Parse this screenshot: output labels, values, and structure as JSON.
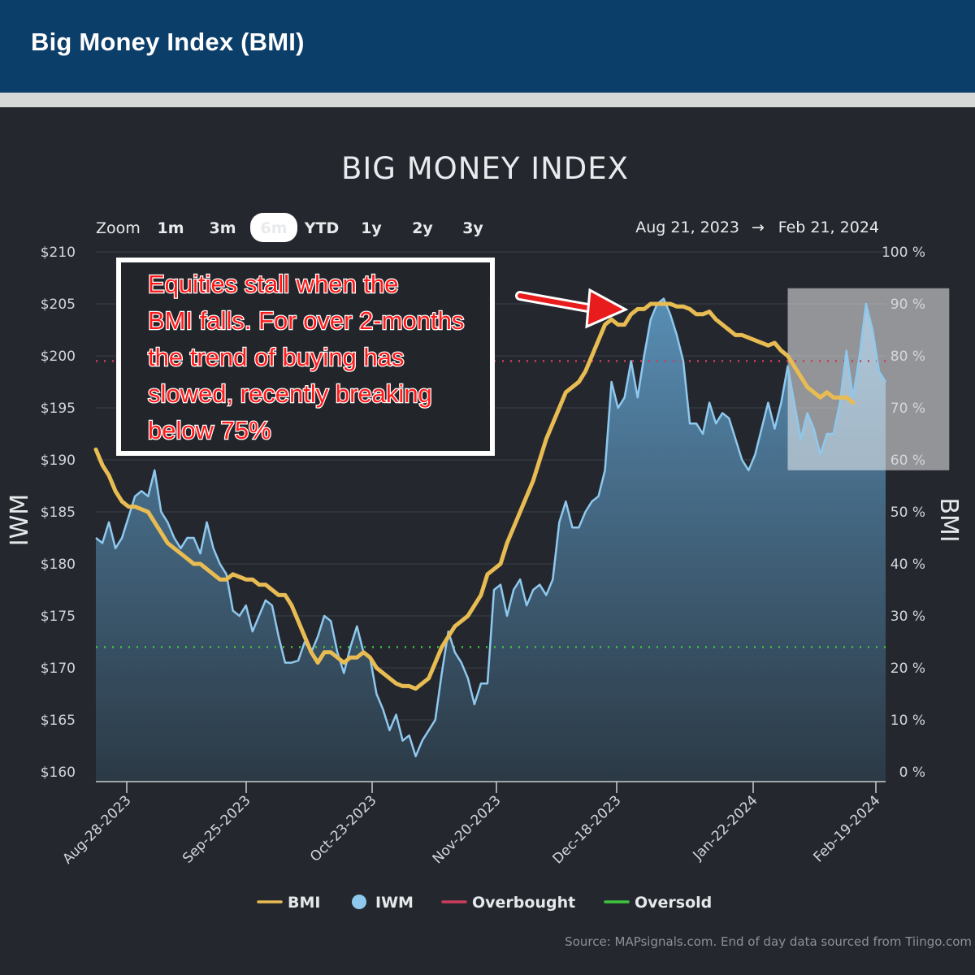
{
  "header": {
    "title": "Big Money Index (BMI)"
  },
  "chart_data": {
    "type": "line",
    "title": "BIG MONEY INDEX",
    "ylabel_left": "IWM",
    "ylabel_right": "BMI",
    "ylim_left": [
      160,
      210
    ],
    "ylim_right": [
      0,
      100
    ],
    "yticks_left": [
      "$210",
      "$205",
      "$200",
      "$195",
      "$190",
      "$185",
      "$180",
      "$175",
      "$170",
      "$165",
      "$160"
    ],
    "yticks_right": [
      "100 %",
      "90 %",
      "80 %",
      "70 %",
      "60 %",
      "50 %",
      "40 %",
      "30 %",
      "20 %",
      "10 %",
      "0 %"
    ],
    "x_ticks": [
      "Aug-28-2023",
      "Sep-25-2023",
      "Oct-23-2023",
      "Nov-20-2023",
      "Dec-18-2023",
      "Jan-22-2024",
      "Feb-19-2024"
    ],
    "zoom": {
      "label": "Zoom",
      "options": [
        "1m",
        "3m",
        "6m",
        "YTD",
        "1y",
        "2y",
        "3y"
      ],
      "selected": "6m"
    },
    "range": {
      "from": "Aug 21, 2023",
      "arrow": "→",
      "to": "Feb 21, 2024"
    },
    "overbought_level": 79,
    "oversold_level": 24,
    "shaded_region": {
      "x_start": 106,
      "x_end": 130,
      "y_bottom": 58,
      "y_top": 93
    },
    "series": [
      {
        "name": "BMI",
        "axis": "right",
        "color": "#e8bc52",
        "values": [
          62,
          59,
          57,
          54,
          52,
          51,
          51,
          50.5,
          50,
          48,
          46,
          44,
          43,
          42,
          41,
          40,
          40,
          39,
          38,
          37,
          37,
          38,
          37.5,
          37,
          37,
          36,
          36,
          35,
          34,
          34,
          32,
          29,
          26,
          23,
          21,
          23,
          23,
          22,
          21,
          22,
          22,
          23,
          22,
          20,
          19,
          18,
          17,
          16.5,
          16.5,
          16,
          17,
          18,
          21,
          24,
          26,
          28,
          29,
          30,
          32,
          34,
          38,
          39,
          40,
          44,
          47,
          50,
          53,
          56,
          60,
          64,
          67,
          70,
          73,
          74,
          75,
          77,
          80,
          83,
          86,
          87,
          86,
          86,
          88,
          89,
          89,
          90,
          90,
          90,
          90,
          89.5,
          89.5,
          89,
          88,
          88,
          88.5,
          87,
          86,
          85,
          84,
          84,
          83.5,
          83,
          82.5,
          82,
          82.5,
          81,
          80,
          78,
          76,
          74,
          73,
          72,
          73,
          72,
          72,
          72,
          71
        ],
        "x_start": 0
      },
      {
        "name": "IWM",
        "axis": "left",
        "color": "#8fc8ee",
        "values": [
          182.5,
          182,
          184,
          181.5,
          182.5,
          184.5,
          186.5,
          187,
          186.5,
          189,
          185,
          184,
          182.5,
          181.5,
          182.5,
          182.5,
          181,
          184,
          181.5,
          180,
          179,
          175.5,
          175,
          176,
          173.5,
          175,
          176.5,
          176,
          173,
          170.5,
          170.5,
          170.7,
          172.5,
          171.5,
          173,
          175,
          174.5,
          171.5,
          169.5,
          172,
          174,
          171.5,
          171,
          167.5,
          166,
          164,
          165.5,
          163,
          163.5,
          161.5,
          163,
          164,
          165,
          169.5,
          173.5,
          171.5,
          170.5,
          169,
          166.5,
          168.5,
          168.5,
          177.5,
          178,
          175,
          177.5,
          178.5,
          176,
          177.5,
          178,
          177,
          178.5,
          184,
          186,
          183.5,
          183.5,
          185,
          186,
          186.5,
          189,
          197.5,
          195,
          196,
          199.5,
          196,
          200,
          203.5,
          205,
          205.5,
          204,
          202,
          199.5,
          193.5,
          193.5,
          192.5,
          195.5,
          193.5,
          194.5,
          194,
          192,
          190,
          189,
          190.5,
          193,
          195.5,
          193,
          195.5,
          199,
          195.5,
          192,
          194.5,
          193,
          190.5,
          192.5,
          192.5,
          195.5,
          200.5,
          196,
          200,
          205,
          202.5,
          198.5,
          197.5
        ],
        "x_start": 0
      },
      {
        "name": "Overbought",
        "color": "#cc3c5c"
      },
      {
        "name": "Oversold",
        "color": "#3ec43e"
      }
    ],
    "annotation": "Equities stall when the BMI falls. For over 2-months the trend of buying has slowed, recently breaking below 75%",
    "annotation_lines": [
      "Equities stall when the",
      "BMI falls. For over 2-months",
      "the trend of buying has",
      "slowed, recently breaking",
      "below 75%"
    ],
    "source": "Source: MAPsignals.com. End of day data sourced from Tiingo.com"
  }
}
